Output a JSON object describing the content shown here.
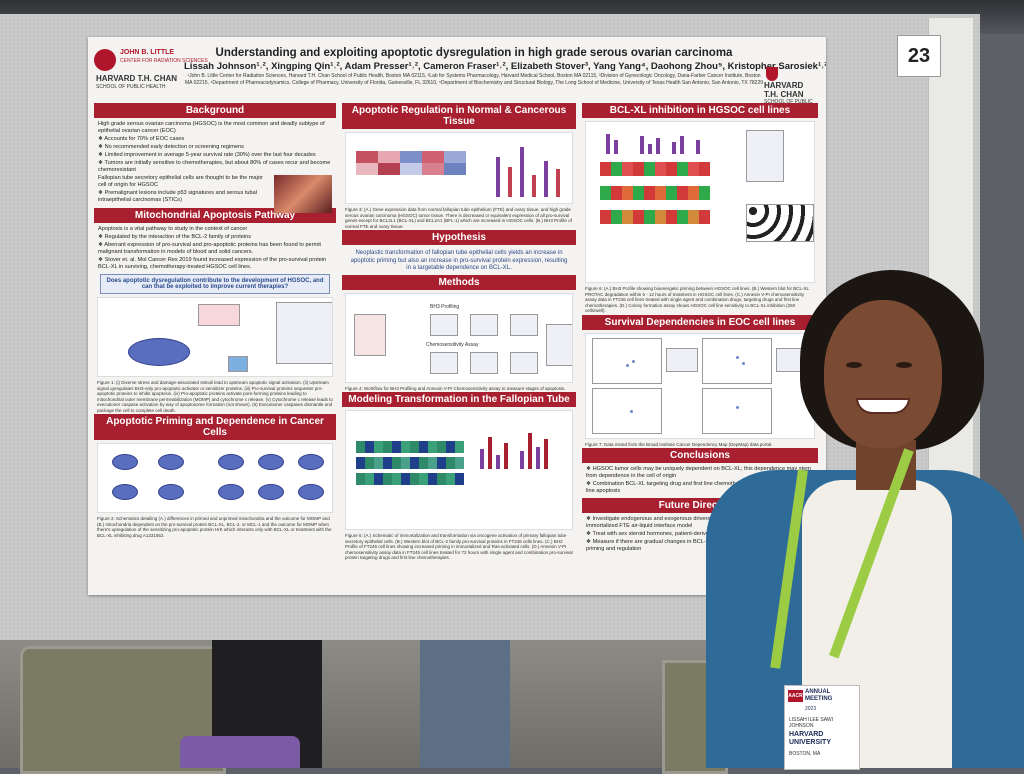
{
  "board_number": "23",
  "poster": {
    "title": "Understanding and exploiting apoptotic dysregulation in high grade serous ovarian carcinoma",
    "authors": "Lissah Johnson¹˒², Xingping Qin¹˒², Adam Presser¹˒², Cameron Fraser¹˒², Elizabeth Stover³, Yang Yang⁴, Daohong Zhou⁵, Kristopher Sarosiek¹˒²",
    "affiliations": "¹John B. Little Center for Radiation Sciences, Harvard T.H. Chan School of Public Health, Boston MA 02115, ²Lab for Systems Pharmacology, Harvard Medical School, Boston MA 02115, ³Division of Gynecologic Oncology, Dana-Farber Cancer Institute, Boston MA 02215, ⁴Department of Pharmacodynamics, College of Pharmacy, University of Florida, Gainesville, FL 32610, ⁵Department of Biochemistry and Structural Biology, The Long School of Medicine, University of Texas Health San Antonio, San Antonio, TX 78229",
    "logo_left": {
      "line1": "JOHN B. LITTLE",
      "line2": "CENTER FOR RADIATION SCIENCES",
      "line3": "HARVARD T.H. CHAN",
      "line4": "SCHOOL OF PUBLIC HEALTH"
    },
    "logo_right": {
      "line1": "HARVARD",
      "line2": "T.H. CHAN",
      "line3": "SCHOOL OF PUBLIC HEALTH"
    },
    "sections": {
      "background": {
        "header": "Background",
        "intro": "High grade serous ovarian carcinoma (HGSOC) is the most common and deadly subtype of epithelial ovarian cancer (EOC)",
        "bullets": [
          "Accounts for 70% of EOC cases",
          "No recommended early detection or screening regimens",
          "Limited improvement in average 5-year survival rate (30%) over the last four decades",
          "Tumors are initially sensitive to chemotherapies, but about 80% of cases recur and become chemoresistant"
        ],
        "fallopian": "Fallopian tube secretory epithelial cells are thought to be the major cell of origin for HGSOC",
        "fallopian_bullet": "Premalignant lesions include p53 signatures and serous tubal intraepithelial carcinomas (STICs)"
      },
      "mito": {
        "header": "Mitochondrial Apoptosis Pathway",
        "intro": "Apoptosis is a vital pathway to study in the context of cancer",
        "bullets": [
          "Regulated by the interaction of the BCL-2 family of proteins",
          "Aberrant expression of pro-survival and pro-apoptotic proteins has been found to permit malignant transformation in models of blood and solid cancers.",
          "Stover et. al. Mol Cancer Res 2019 found increased expression of the pro-survival protein BCL-XL in surviving, chemotherapy-treated HGSOC cell lines."
        ],
        "question": "Does apoptotic dysregulation contribute to the development of HGSOC, and can that be exploited to improve current therapies?",
        "figure_caption": "Figure 1: (i) Diverse stress and damage-associated stimuli lead to upstream apoptotic signal activation. (ii) Upstream signal upregulates BH3-only pro-apoptotic activator or sensitizer proteins. (iii) Pro-survival proteins sequester pro-apoptotic proteins to inhibit apoptosis. (iv) Pro-apoptotic proteins activate pore-forming proteins leading to mitochondrial outer membrane permeabilization (MOMP) and cytochrome c release. (v) Cytochrome c release leads to executioner caspase activation by way of apoptosome formation (not shown). (6) Executioner caspases dismantle and package the cell to complete cell death."
      },
      "priming": {
        "header": "Apoptotic Priming and Dependence in Cancer Cells",
        "figure_caption": "Figure 2: Schematics detailing (A.) differences in primed and unprimed mitochondria and the outcome for MOMP and (B.) mitochondria dependent on the pro-survival protein BCL-XL, BCL-2, or MCL-1 and the outcome for MOMP when there's upregulation of the sensitizing pro-apoptotic protein HrK which interacts only with BCL-XL or treatment with the BCL-XL inhibiting drug A1331852."
      },
      "regulation": {
        "header": "Apoptotic Regulation in Normal & Cancerous Tissue",
        "figure_caption": "Figure 3: (A.) Gene expression data from normal fallopian tube epithelium (FTE) and ovary tissue, and high grade serous ovarian carcinoma (HGSOC) tumor tissue. There is decreased or equivalent expression of all pro-survival genes except for BCL2L1 (BCL-XL) and BCL2A1 (BFL-1) which are increased in HGSOC cells. (B.) BH3 Profile of normal FTE and ovary tissue."
      },
      "hypothesis": {
        "header": "Hypothesis",
        "text": "Neoplastic transformation of fallopian tube epithelial cells yields an increase in apoptotic priming but also an increase in pro-survival protein expression, resulting in a targetable dependence on BCL-XL."
      },
      "methods": {
        "header": "Methods",
        "labels": [
          "BH3 Profiling",
          "Chemosensitivity Assay"
        ],
        "figure_caption": "Figure 4: Workflow for BH3 Profiling and Annexin V-PI Chemosensitivity assay to measure stages of apoptosis."
      },
      "modeling": {
        "header": "Modeling Transformation in the Fallopian Tube",
        "figure_caption": "Figure 5: (A.) Schematic of immortalization and transformation via oncogene activation of primary fallopian tube secretory epithelial cells. (B.) Western blot of BCL-2 family pro-survival proteins in FT246 cells lines. (C.) BH3 Profile of FT246 cell lines showing increased priming in immortalized and Ras-activated cells. (D.) Annexin V-PI chemosensitivity assay data in FT246 cell lines treated for 72 hours with single agent and combination pro-survival protein targeting drugs and first line chemotherapies."
      },
      "bclxl": {
        "header": "BCL-XL inhibition in HGSOC cell lines",
        "figure_caption": "Figure 6: (A.) BH3 Profile showing bioenergetic priming between HGSOC cell lines. (B.) Western blot for BCL-XL PROTAC degradation within 6 - 12 hours of treatment in HGSOC cell lines. (C.) Annexin V-PI chemosensitivity assay data in FT246 cell lines treated with single agent and combination drugs, targeting drugs and first line chemotherapies. (D.) Colony formation assay shows HGSOC cell line sensitivity to BCL-XL inhibition (250 cells/well)."
      },
      "survival": {
        "header": "Survival Dependencies in EOC cell lines",
        "figure_caption": "Figure 7: Data mined from the Broad Institute Cancer Dependency Map (DepMap) data portal."
      },
      "conclusions": {
        "header": "Conclusions",
        "bullets": [
          "HGSOC tumor cells may be uniquely dependent on BCL-XL; this dependence may stem from dependence in the cell of origin",
          "Combination BCL-XL targeting drug and first line chemotherapies increase HGSOC cell line apoptosis"
        ]
      },
      "future": {
        "header": "Future Directions",
        "bullets": [
          "Investigate endogenous and exogenous drivers of apoptotic dysregulation using a non-immortalized FTE air-liquid interface model",
          "Treat with sex steroid hormones, patient-derived ascites, and environmental estrogens",
          "Measure if there are gradual changes in BCL-2 family protein expression levels, apoptotic priming and regulation"
        ]
      }
    }
  },
  "badge": {
    "logo": "AACR",
    "event": "ANNUAL MEETING",
    "year": "2023",
    "name": "LISSAH ILEE SAWI JOHNSON",
    "org": "HARVARD UNIVERSITY",
    "city": "BOSTON, MA"
  },
  "colors": {
    "poster_accent": "#a8202f",
    "callout_blue": "#2b4a8a",
    "jacket": "#2e6b98",
    "lanyard": "#9ccc44"
  }
}
